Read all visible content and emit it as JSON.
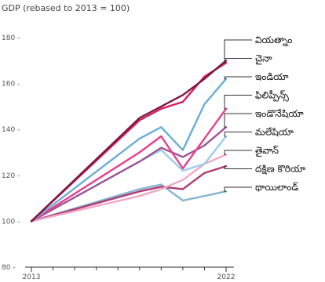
{
  "chart_data": {
    "type": "line",
    "title": "GDP (rebased to 2013 = 100)",
    "xlabel": "",
    "ylabel": "",
    "x": [
      2013,
      2018,
      2019,
      2020,
      2021,
      2022
    ],
    "x_tick_labels": [
      "2013",
      "2022"
    ],
    "x_range": [
      2013,
      2022
    ],
    "ylim": [
      80,
      180
    ],
    "y_ticks": [
      80,
      100,
      120,
      140,
      160,
      180
    ],
    "grid": false,
    "legend": "right, labels attached to line ends",
    "series": [
      {
        "name": "వియత్నాం",
        "values": [
          100,
          145,
          150,
          155,
          162,
          170
        ],
        "color": "#7a1b3c"
      },
      {
        "name": "చైనా",
        "values": [
          100,
          144,
          149,
          152,
          163,
          169
        ],
        "color": "#d81b60"
      },
      {
        "name": "ఇండియా",
        "values": [
          100,
          136,
          141,
          131,
          151,
          162
        ],
        "color": "#6aaed6"
      },
      {
        "name": "ఫిలిప్పీన్స్",
        "values": [
          100,
          130,
          137,
          123,
          136,
          149
        ],
        "color": "#e83e8c"
      },
      {
        "name": "ఇండొనేషియా",
        "values": [
          100,
          126,
          132,
          128,
          133,
          141
        ],
        "color": "#a05595"
      },
      {
        "name": "మలేషియా",
        "values": [
          100,
          126,
          131,
          122,
          125,
          137
        ],
        "color": "#9ccde8"
      },
      {
        "name": "తైవాన్",
        "values": [
          100,
          111,
          114,
          118,
          125,
          129
        ],
        "color": "#f2a7c4"
      },
      {
        "name": "దక్షిణ కొరియా",
        "values": [
          100,
          113,
          115,
          114,
          121,
          124
        ],
        "color": "#b03a74"
      },
      {
        "name": "థాయిలాండ్",
        "values": [
          100,
          114,
          116,
          109,
          111,
          113
        ],
        "color": "#86b5cf"
      }
    ]
  }
}
